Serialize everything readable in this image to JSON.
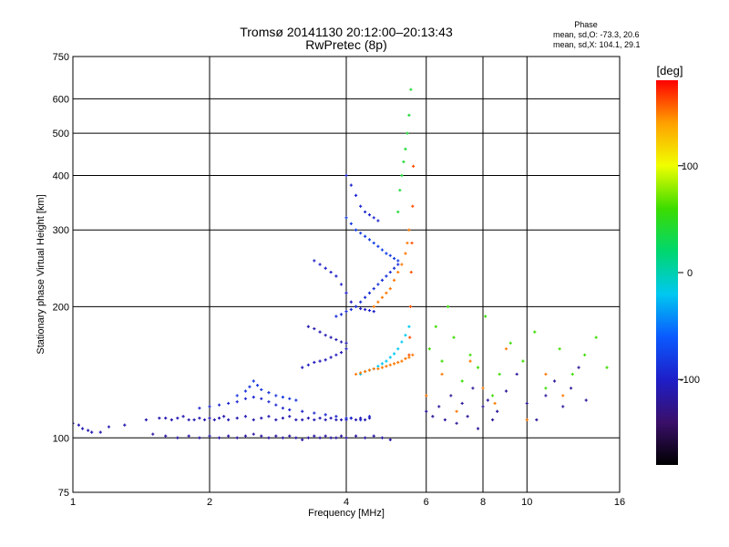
{
  "chart_data": {
    "type": "scatter",
    "title": "Tromsø 20141130 20:12:00–20:13:43",
    "subtitle": "RwPretec (8p)",
    "phase_header": "Phase",
    "phase_stats": [
      "mean, sd,O: -73.3, 20.6",
      "mean, sd,X: 104.1, 29.1"
    ],
    "xlabel": "Frequency [MHz]",
    "ylabel": "Stationary phase Virtual Height [km]",
    "xscale": "log",
    "yscale": "log",
    "xlim": [
      1,
      16
    ],
    "ylim": [
      75,
      750
    ],
    "xticks": [
      1,
      2,
      4,
      6,
      8,
      10,
      16
    ],
    "xtick_labels": [
      "1",
      "2",
      "4",
      "6",
      "8",
      "10",
      "16"
    ],
    "yticks": [
      75,
      100,
      200,
      300,
      400,
      500,
      600,
      750
    ],
    "ytick_labels": [
      "75",
      "100",
      "200",
      "300",
      "400",
      "500",
      "600",
      "750"
    ],
    "grid": true,
    "colorbar": {
      "label": "[deg]",
      "range": [
        -180,
        180
      ],
      "ticks": [
        100,
        0,
        -100
      ],
      "tick_labels": [
        "100",
        "0",
        "-100"
      ],
      "colors": [
        "#000000",
        "#3a0f6a",
        "#1e1ec8",
        "#0a5aff",
        "#00c8f0",
        "#00d76e",
        "#3cdc00",
        "#f0ff00",
        "#ffa000",
        "#ff0000"
      ]
    },
    "series": [
      {
        "phase": -110,
        "x": [
          1.0,
          1.03,
          1.05,
          1.08,
          1.1,
          1.15,
          1.2,
          1.3,
          1.45,
          1.55,
          1.6,
          1.65,
          1.7,
          1.75,
          1.8,
          1.85,
          1.9,
          1.95,
          2.0,
          2.05,
          2.1,
          2.15,
          2.2,
          2.3,
          2.4,
          2.5,
          2.6,
          2.7,
          2.8,
          2.9,
          3.0,
          3.1,
          3.2,
          3.3,
          3.4,
          3.5,
          3.6,
          3.7,
          3.8,
          3.9,
          4.0,
          4.1,
          4.2,
          4.3,
          4.4,
          4.5
        ],
        "y": [
          108,
          107,
          105,
          104,
          103,
          103,
          106,
          107,
          110,
          111,
          111,
          110,
          111,
          112,
          110,
          110,
          111,
          110,
          111,
          110,
          111,
          112,
          110,
          111,
          112,
          110,
          111,
          112,
          110,
          111,
          112,
          110,
          110,
          111,
          110,
          111,
          110,
          111,
          110,
          110,
          110,
          111,
          110,
          111,
          110,
          111
        ]
      },
      {
        "phase": -115,
        "x": [
          1.5,
          1.6,
          1.7,
          1.8,
          1.9,
          2.0,
          2.1,
          2.2,
          2.3,
          2.4,
          2.5,
          2.6,
          2.7,
          2.8,
          2.9,
          3.0,
          3.1,
          3.2,
          3.3,
          3.4,
          3.5,
          3.6,
          3.7,
          3.8,
          3.9,
          4.0,
          4.2,
          4.4,
          4.6,
          4.8,
          5.0
        ],
        "y": [
          102,
          101,
          100,
          101,
          100,
          101,
          100,
          101,
          100,
          101,
          102,
          101,
          100,
          101,
          100,
          101,
          100,
          99,
          100,
          101,
          100,
          101,
          100,
          100,
          101,
          100,
          101,
          100,
          101,
          100,
          99
        ]
      },
      {
        "phase": -95,
        "x": [
          1.9,
          2.0,
          2.1,
          2.2,
          2.3,
          2.4,
          2.5,
          2.6,
          2.7,
          2.8,
          2.9,
          3.0,
          3.2,
          3.4,
          3.6,
          3.8,
          4.0,
          4.1,
          4.3,
          4.5
        ],
        "y": [
          117,
          118,
          119,
          120,
          121,
          123,
          124,
          123,
          121,
          119,
          117,
          116,
          115,
          114,
          113,
          112,
          111,
          111,
          110,
          112
        ]
      },
      {
        "phase": -85,
        "x": [
          2.3,
          2.4,
          2.45,
          2.5,
          2.55,
          2.6,
          2.7,
          2.8,
          2.9,
          3.0,
          3.1
        ],
        "y": [
          125,
          128,
          131,
          135,
          132,
          129,
          127,
          125,
          124,
          123,
          122
        ]
      },
      {
        "phase": -105,
        "x": [
          3.2,
          3.3,
          3.4,
          3.5,
          3.6,
          3.7,
          3.8,
          3.9,
          4.0
        ],
        "y": [
          145,
          147,
          149,
          150,
          151,
          153,
          155,
          157,
          160
        ]
      },
      {
        "phase": -110,
        "x": [
          3.3,
          3.4,
          3.5,
          3.6,
          3.7,
          3.8,
          3.9,
          4.0
        ],
        "y": [
          180,
          178,
          175,
          172,
          170,
          168,
          166,
          165
        ]
      },
      {
        "phase": -100,
        "x": [
          3.4,
          3.5,
          3.6,
          3.7,
          3.8,
          3.9,
          4.0,
          4.1,
          4.2,
          4.3,
          4.4,
          4.5,
          4.6
        ],
        "y": [
          255,
          250,
          245,
          240,
          235,
          225,
          215,
          205,
          200,
          198,
          197,
          196,
          195
        ]
      },
      {
        "phase": -90,
        "x": [
          3.8,
          3.9,
          4.0,
          4.1,
          4.2,
          4.3,
          4.4,
          4.5,
          4.6,
          4.7,
          4.8,
          4.9,
          5.0,
          5.1,
          5.2
        ],
        "y": [
          190,
          192,
          195,
          197,
          200,
          205,
          210,
          215,
          220,
          225,
          230,
          235,
          240,
          245,
          250
        ]
      },
      {
        "phase": -80,
        "x": [
          4.0,
          4.1,
          4.2,
          4.3,
          4.4,
          4.5,
          4.6,
          4.7,
          4.8,
          4.9,
          5.0,
          5.1,
          5.2
        ],
        "y": [
          320,
          310,
          300,
          295,
          290,
          285,
          280,
          275,
          270,
          265,
          262,
          258,
          255
        ]
      },
      {
        "phase": -95,
        "x": [
          4.0,
          4.1,
          4.2,
          4.3,
          4.4,
          4.5,
          4.6,
          4.7
        ],
        "y": [
          400,
          380,
          360,
          340,
          330,
          325,
          320,
          315
        ]
      },
      {
        "phase": -20,
        "x": [
          4.3,
          4.4,
          4.5,
          4.6,
          4.7,
          4.8,
          4.9,
          5.0,
          5.1,
          5.2,
          5.3,
          5.4,
          5.5
        ],
        "y": [
          140,
          142,
          143,
          144,
          146,
          148,
          150,
          153,
          156,
          160,
          166,
          172,
          180
        ]
      },
      {
        "phase": 40,
        "x": [
          5.2,
          5.25,
          5.3,
          5.35,
          5.4,
          5.45,
          5.5,
          5.55
        ],
        "y": [
          330,
          370,
          400,
          430,
          460,
          500,
          550,
          630
        ]
      },
      {
        "phase": 150,
        "x": [
          4.2,
          4.3,
          4.4,
          4.5,
          4.6,
          4.7,
          4.8,
          4.9,
          5.0,
          5.1,
          5.2,
          5.3,
          5.4,
          5.5,
          5.6
        ],
        "y": [
          140,
          141,
          142,
          143,
          144,
          144,
          145,
          146,
          147,
          148,
          149,
          150,
          152,
          153,
          155
        ]
      },
      {
        "phase": 150,
        "x": [
          4.6,
          4.7,
          4.8,
          4.9,
          5.0,
          5.1,
          5.2,
          5.3,
          5.4,
          5.45,
          5.5
        ],
        "y": [
          200,
          205,
          210,
          215,
          220,
          230,
          240,
          250,
          265,
          280,
          300
        ]
      },
      {
        "phase": 160,
        "x": [
          5.5,
          5.52,
          5.54,
          5.56,
          5.58,
          5.6,
          5.62
        ],
        "y": [
          155,
          170,
          200,
          240,
          280,
          340,
          420
        ]
      },
      {
        "phase": -120,
        "x": [
          6.0,
          6.2,
          6.4,
          6.6,
          6.8,
          7.0,
          7.2,
          7.4,
          7.6,
          7.8,
          8.0,
          8.2,
          8.4,
          8.6,
          9.0,
          9.5,
          10.0,
          10.5,
          11.0,
          11.5,
          12.0,
          12.5,
          13.0,
          13.5
        ],
        "y": [
          115,
          112,
          118,
          110,
          125,
          108,
          120,
          112,
          130,
          105,
          118,
          122,
          110,
          115,
          128,
          140,
          120,
          110,
          125,
          135,
          118,
          130,
          145,
          122
        ]
      },
      {
        "phase": 60,
        "x": [
          6.1,
          6.3,
          6.5,
          6.7,
          6.9,
          7.2,
          7.5,
          7.8,
          8.1,
          8.4,
          8.7,
          9.2,
          9.8,
          10.4,
          11.0,
          11.8,
          12.6,
          13.4,
          14.2,
          15.0
        ],
        "y": [
          160,
          180,
          150,
          200,
          170,
          135,
          155,
          145,
          190,
          125,
          140,
          165,
          150,
          175,
          130,
          160,
          140,
          155,
          170,
          145
        ]
      },
      {
        "phase": 150,
        "x": [
          6.0,
          6.5,
          7.0,
          7.5,
          8.0,
          8.5,
          9.0,
          10.0,
          11.0,
          12.0
        ],
        "y": [
          125,
          140,
          115,
          150,
          130,
          120,
          160,
          110,
          140,
          125
        ]
      }
    ]
  }
}
